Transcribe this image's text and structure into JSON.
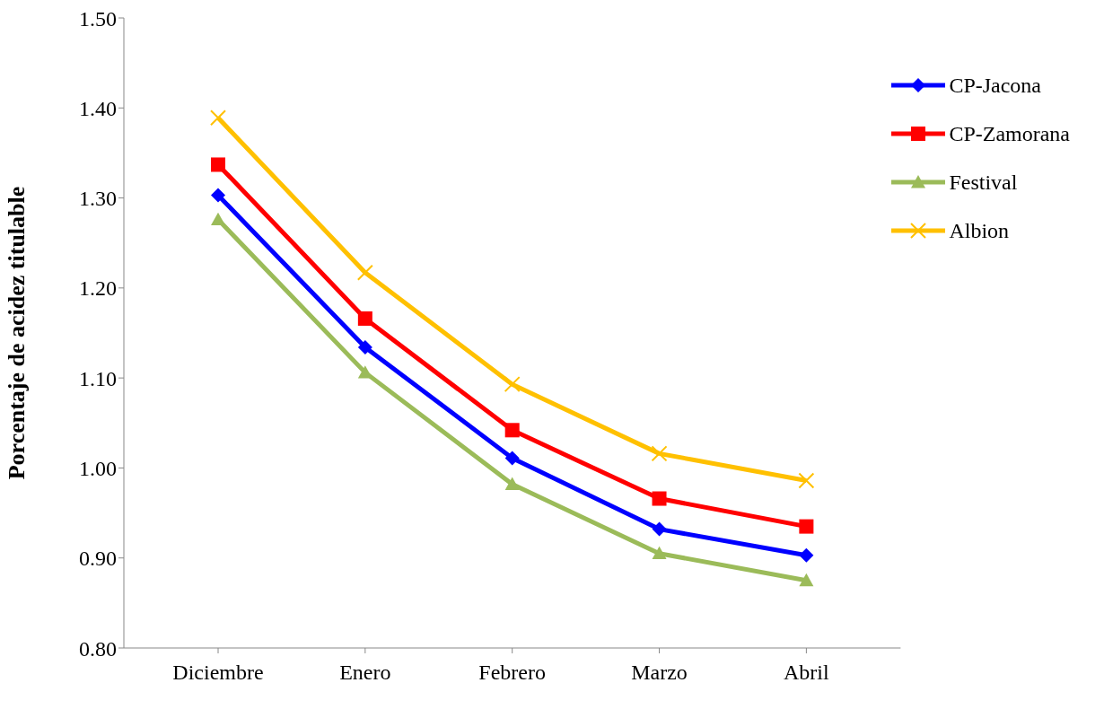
{
  "chart_data": {
    "type": "line",
    "ylabel": "Porcentaje de acidez titulable",
    "categories": [
      "Diciembre",
      "Enero",
      "Febrero",
      "Marzo",
      "Abril"
    ],
    "ylim": [
      0.8,
      1.5
    ],
    "yticks": [
      {
        "value": 0.8,
        "label": "0.80"
      },
      {
        "value": 0.9,
        "label": "0.90"
      },
      {
        "value": 1.0,
        "label": "1.00"
      },
      {
        "value": 1.1,
        "label": "1.10"
      },
      {
        "value": 1.2,
        "label": "1.20"
      },
      {
        "value": 1.3,
        "label": "1.30"
      },
      {
        "value": 1.4,
        "label": "1.40"
      },
      {
        "value": 1.5,
        "label": "1.50"
      }
    ],
    "grid": false,
    "legend": "top right",
    "line_style": "solid",
    "series": [
      {
        "name": "CP-Jacona",
        "color": "#0000ff",
        "marker": "diamond",
        "values": [
          1.303,
          1.134,
          1.011,
          0.932,
          0.903
        ]
      },
      {
        "name": "CP-Zamorana",
        "color": "#ff0000",
        "marker": "square",
        "values": [
          1.337,
          1.166,
          1.042,
          0.966,
          0.935
        ]
      },
      {
        "name": "Festival",
        "color": "#9bbb59",
        "marker": "triangle",
        "values": [
          1.276,
          1.106,
          0.982,
          0.905,
          0.875
        ]
      },
      {
        "name": "Albion",
        "color": "#ffc000",
        "marker": "cross",
        "values": [
          1.389,
          1.217,
          1.093,
          1.016,
          0.986
        ]
      }
    ]
  }
}
